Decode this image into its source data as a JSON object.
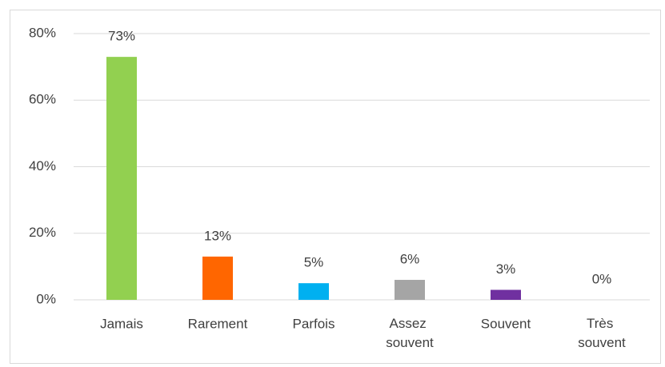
{
  "chart_data": {
    "type": "bar",
    "categories": [
      "Jamais",
      "Rarement",
      "Parfois",
      "Assez souvent",
      "Souvent",
      "Très souvent"
    ],
    "values": [
      73,
      13,
      5,
      6,
      3,
      0
    ],
    "value_labels": [
      "73%",
      "13%",
      "5%",
      "6%",
      "3%",
      "0%"
    ],
    "colors": [
      "#92d050",
      "#ff6600",
      "#00b0f0",
      "#a5a5a5",
      "#7030a0",
      "#4472c4"
    ],
    "ylim": [
      0,
      80
    ],
    "yticks": [
      {
        "value": 0,
        "label": "0%"
      },
      {
        "value": 20,
        "label": "20%"
      },
      {
        "value": 40,
        "label": "40%"
      },
      {
        "value": 60,
        "label": "60%"
      },
      {
        "value": 80,
        "label": "80%"
      }
    ],
    "grid": true
  }
}
